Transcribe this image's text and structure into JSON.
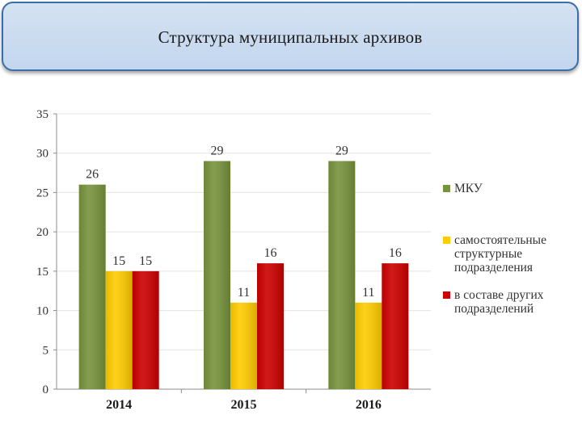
{
  "header": {
    "title": "Структура муниципальных архивов"
  },
  "chart_data": {
    "type": "bar",
    "title": "",
    "xlabel": "",
    "ylabel": "",
    "categories": [
      "2014",
      "2015",
      "2016"
    ],
    "ylim": [
      0,
      35
    ],
    "yticks": [
      0,
      5,
      10,
      15,
      20,
      25,
      30,
      35
    ],
    "grid": true,
    "legend_position": "right",
    "series": [
      {
        "name": "МКУ",
        "values": [
          26,
          29,
          29
        ],
        "color": "#77933c"
      },
      {
        "name": "самостоятельные структурные подразделения",
        "legend_lines": [
          "самостоятельные",
          "структурные",
          "подразделения"
        ],
        "values": [
          15,
          11,
          11
        ],
        "color": "#ffcc00"
      },
      {
        "name": "в составе других подразделений",
        "legend_lines": [
          "в составе других",
          "подразделений"
        ],
        "values": [
          15,
          16,
          16
        ],
        "color": "#cc0000"
      }
    ]
  }
}
